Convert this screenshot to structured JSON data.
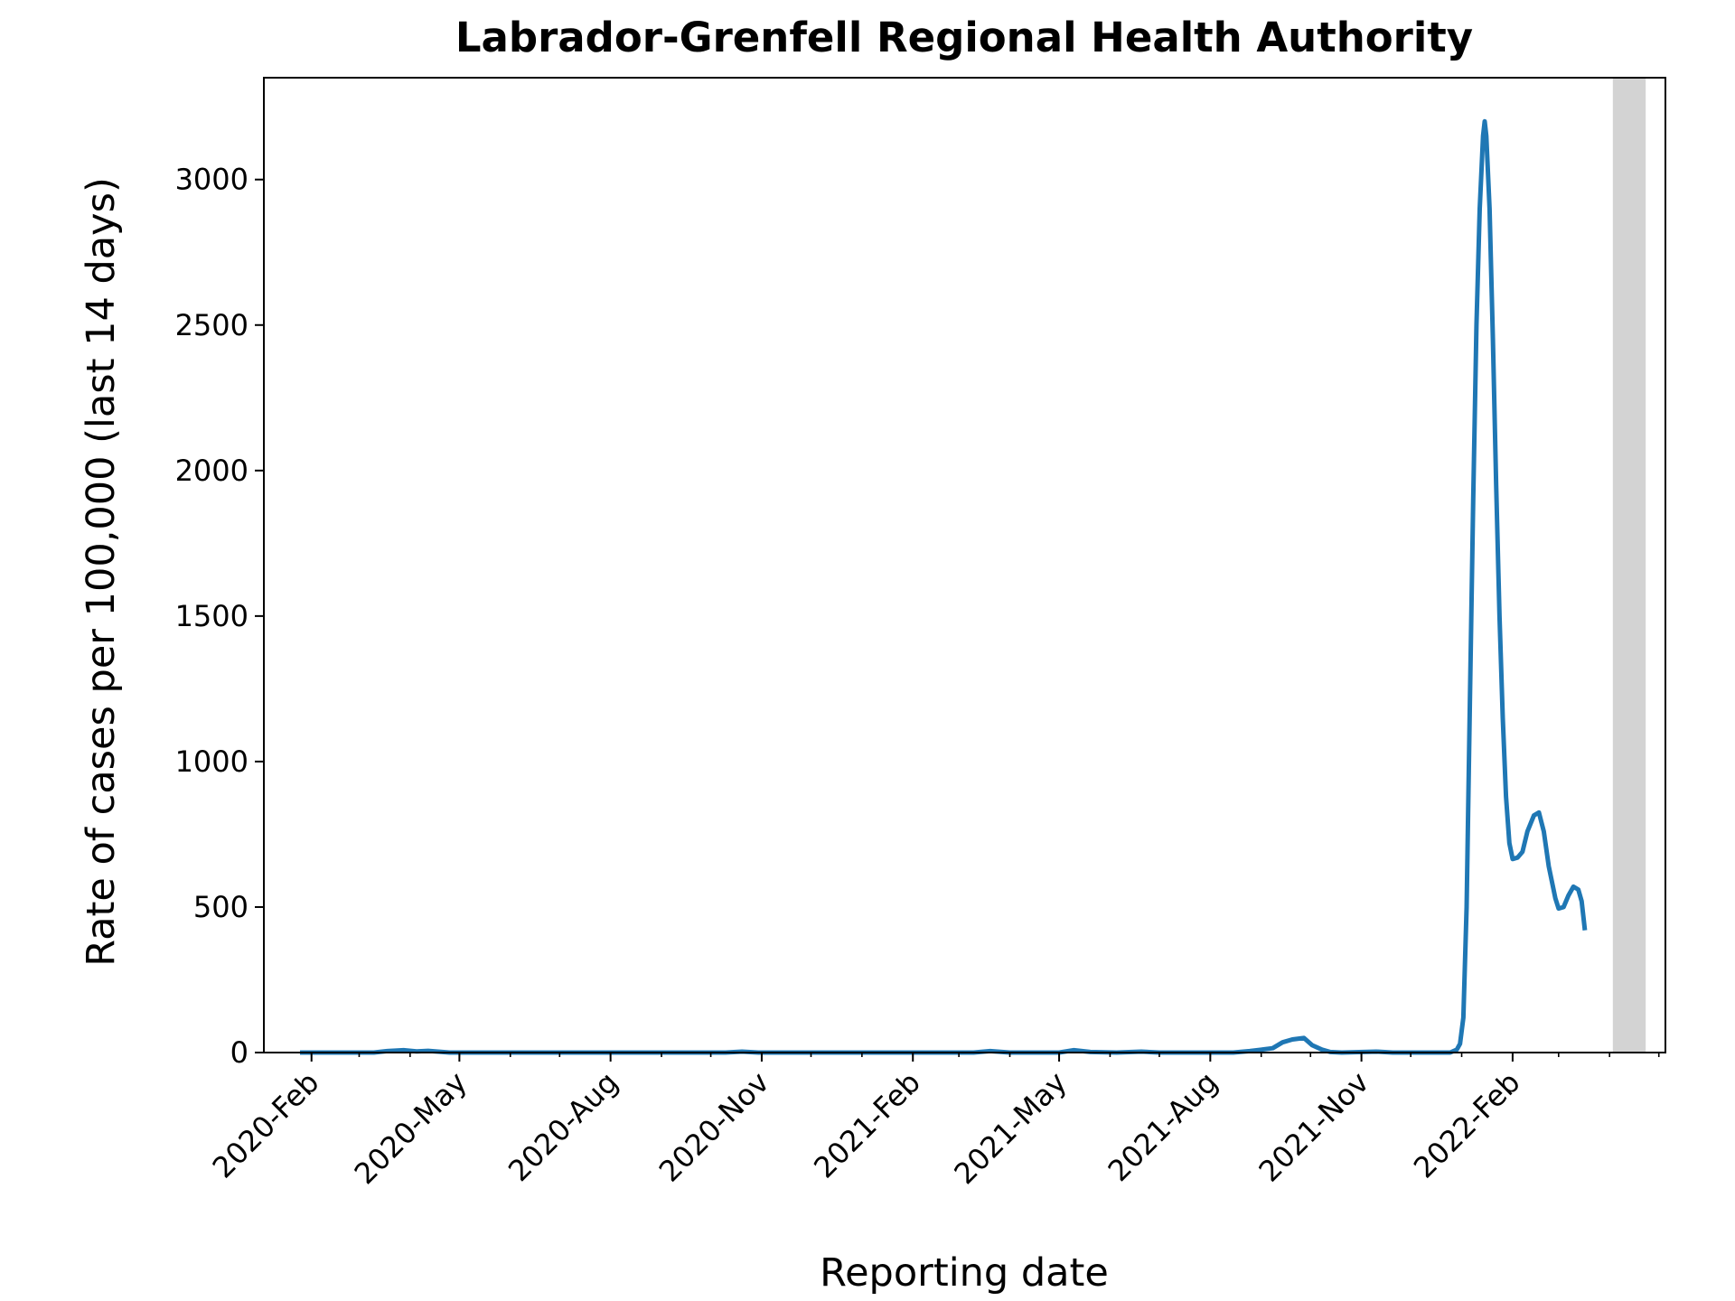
{
  "chart_data": {
    "type": "line",
    "title": "Labrador-Grenfell Regional Health Authority",
    "xlabel": "Reporting date",
    "ylabel": "Rate of cases per 100,000 (last 14 days)",
    "x_tick_labels": [
      "2020-Feb",
      "2020-May",
      "2020-Aug",
      "2020-Nov",
      "2021-Feb",
      "2021-May",
      "2021-Aug",
      "2021-Nov",
      "2022-Feb"
    ],
    "x_tick_dates": [
      "2020-02-01",
      "2020-05-01",
      "2020-08-01",
      "2020-11-01",
      "2021-02-01",
      "2021-05-01",
      "2021-08-01",
      "2021-11-01",
      "2022-02-01"
    ],
    "xlim": [
      "2020-01-03",
      "2022-05-05"
    ],
    "ylim": [
      0,
      3350
    ],
    "y_ticks": [
      0,
      500,
      1000,
      1500,
      2000,
      2500,
      3000
    ],
    "grid": false,
    "shaded_region": {
      "start": "2022-04-03",
      "end": "2022-04-23",
      "color": "#d3d3d3"
    },
    "series": [
      {
        "color": "#1f77b4",
        "points": [
          [
            "2020-01-25",
            0
          ],
          [
            "2020-03-10",
            0
          ],
          [
            "2020-03-18",
            5
          ],
          [
            "2020-03-28",
            8
          ],
          [
            "2020-04-05",
            4
          ],
          [
            "2020-04-12",
            6
          ],
          [
            "2020-04-25",
            0
          ],
          [
            "2020-10-10",
            0
          ],
          [
            "2020-10-20",
            3
          ],
          [
            "2020-10-30",
            0
          ],
          [
            "2021-03-10",
            0
          ],
          [
            "2021-03-20",
            5
          ],
          [
            "2021-04-01",
            0
          ],
          [
            "2021-05-01",
            0
          ],
          [
            "2021-05-10",
            8
          ],
          [
            "2021-05-20",
            2
          ],
          [
            "2021-06-05",
            0
          ],
          [
            "2021-06-20",
            3
          ],
          [
            "2021-07-01",
            0
          ],
          [
            "2021-08-15",
            0
          ],
          [
            "2021-08-25",
            5
          ],
          [
            "2021-09-01",
            10
          ],
          [
            "2021-09-08",
            15
          ],
          [
            "2021-09-14",
            35
          ],
          [
            "2021-09-20",
            45
          ],
          [
            "2021-09-27",
            50
          ],
          [
            "2021-10-02",
            25
          ],
          [
            "2021-10-08",
            10
          ],
          [
            "2021-10-13",
            2
          ],
          [
            "2021-10-20",
            0
          ],
          [
            "2021-11-10",
            3
          ],
          [
            "2021-11-20",
            0
          ],
          [
            "2021-12-25",
            0
          ],
          [
            "2021-12-29",
            10
          ],
          [
            "2021-12-31",
            30
          ],
          [
            "2022-01-02",
            120
          ],
          [
            "2022-01-04",
            500
          ],
          [
            "2022-01-06",
            1200
          ],
          [
            "2022-01-08",
            1900
          ],
          [
            "2022-01-10",
            2500
          ],
          [
            "2022-01-12",
            2900
          ],
          [
            "2022-01-14",
            3150
          ],
          [
            "2022-01-15",
            3200
          ],
          [
            "2022-01-16",
            3150
          ],
          [
            "2022-01-18",
            2900
          ],
          [
            "2022-01-20",
            2450
          ],
          [
            "2022-01-22",
            1950
          ],
          [
            "2022-01-24",
            1500
          ],
          [
            "2022-01-26",
            1150
          ],
          [
            "2022-01-28",
            880
          ],
          [
            "2022-01-30",
            720
          ],
          [
            "2022-02-01",
            665
          ],
          [
            "2022-02-04",
            670
          ],
          [
            "2022-02-07",
            690
          ],
          [
            "2022-02-10",
            760
          ],
          [
            "2022-02-14",
            815
          ],
          [
            "2022-02-17",
            825
          ],
          [
            "2022-02-20",
            760
          ],
          [
            "2022-02-23",
            640
          ],
          [
            "2022-02-27",
            530
          ],
          [
            "2022-03-01",
            495
          ],
          [
            "2022-03-04",
            500
          ],
          [
            "2022-03-07",
            540
          ],
          [
            "2022-03-10",
            570
          ],
          [
            "2022-03-13",
            560
          ],
          [
            "2022-03-15",
            520
          ],
          [
            "2022-03-17",
            420
          ]
        ]
      }
    ]
  }
}
